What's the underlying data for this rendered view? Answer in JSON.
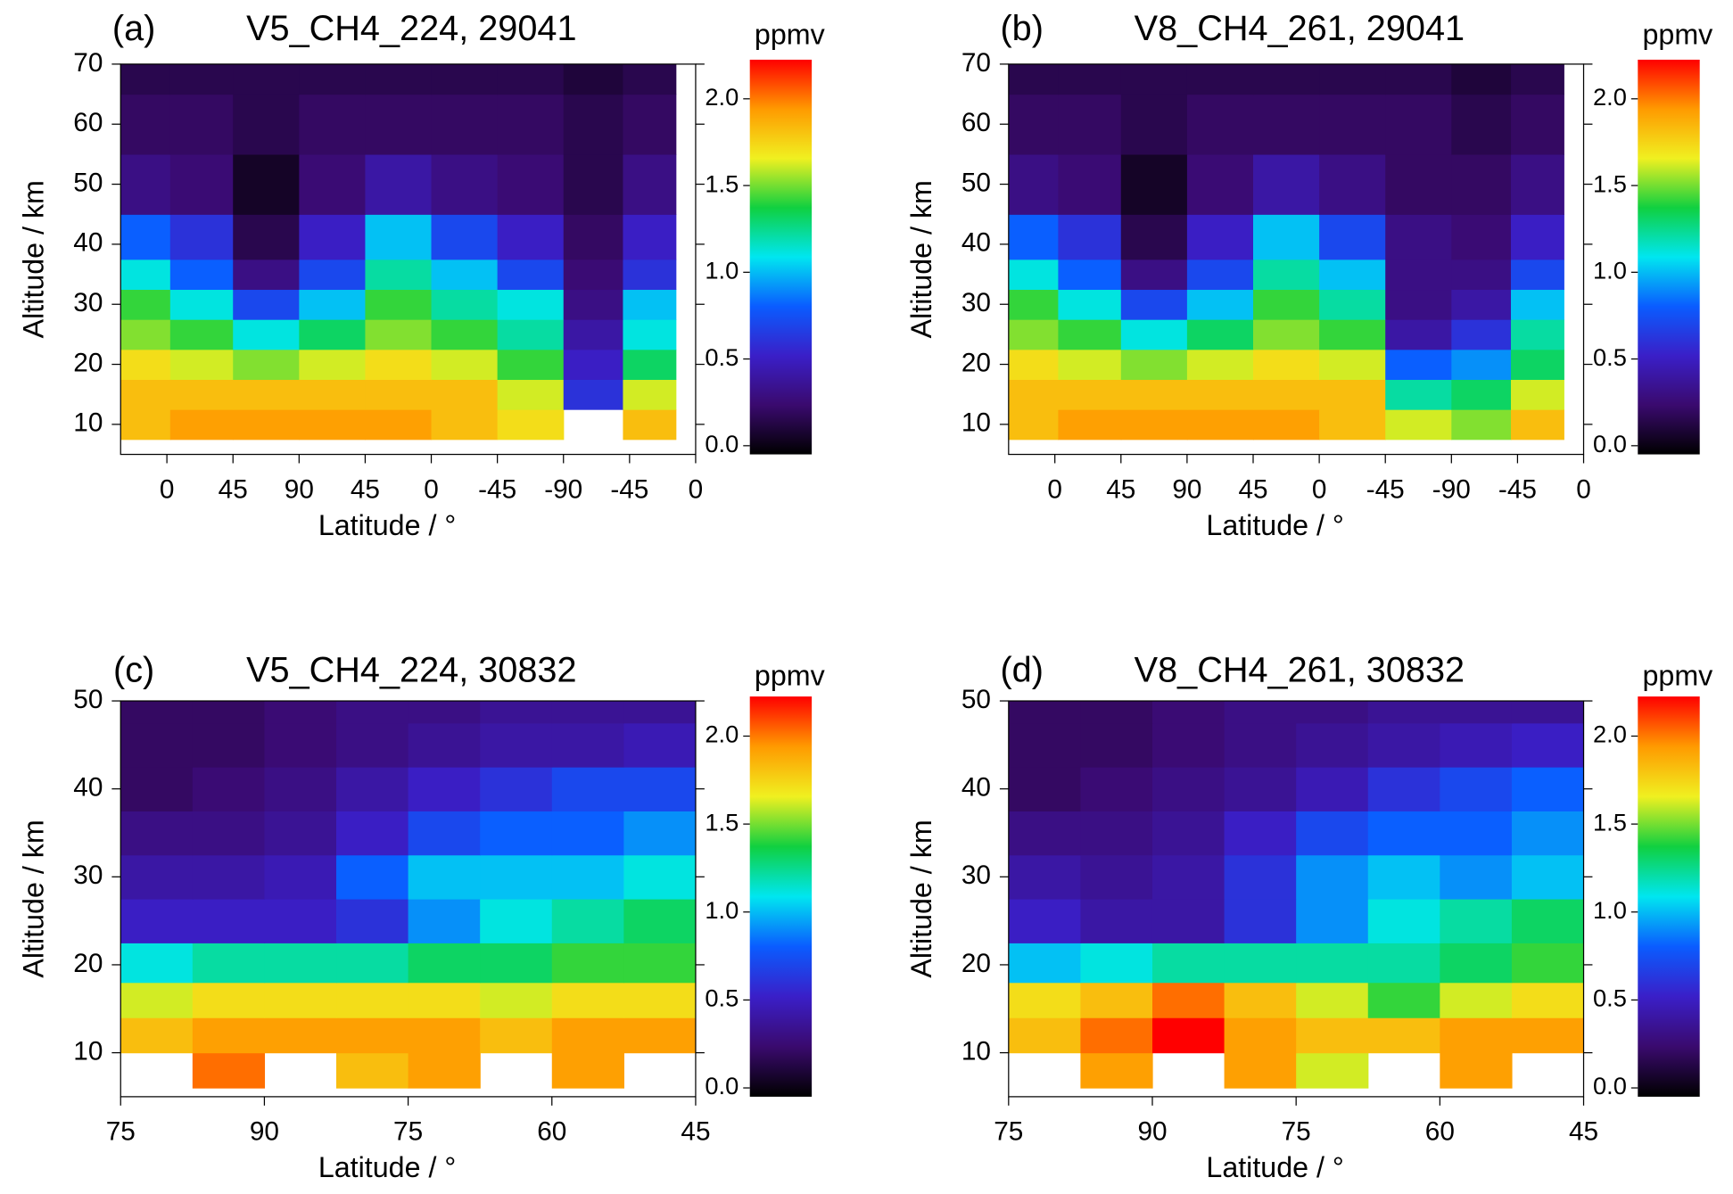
{
  "chart_data": [
    {
      "type": "contour",
      "panel_label": "(a)",
      "title": "V5_CH4_224, 29041",
      "colorbar_label": "ppmv",
      "x_label": "Latitude / °",
      "y_label": "Altitude / km",
      "xlim": [
        -0.7,
        8
      ],
      "xticks": [
        {
          "value": 0,
          "label": "0"
        },
        {
          "value": 1,
          "label": "45"
        },
        {
          "value": 2,
          "label": "90"
        },
        {
          "value": 3,
          "label": "45"
        },
        {
          "value": 4,
          "label": "0"
        },
        {
          "value": 5,
          "label": "-45"
        },
        {
          "value": 6,
          "label": "-90"
        },
        {
          "value": 7,
          "label": "-45"
        },
        {
          "value": 8,
          "label": "0"
        }
      ],
      "ylim": [
        5,
        70
      ],
      "yticks": [
        10,
        20,
        30,
        40,
        50,
        60,
        70
      ],
      "zlim": [
        -0.05,
        2.2
      ],
      "zticks": [
        {
          "value": 0,
          "label": "0.0"
        },
        {
          "value": 0.5,
          "label": "0.5"
        },
        {
          "value": 1,
          "label": "1.0"
        },
        {
          "value": 1.5,
          "label": "1.5"
        },
        {
          "value": 2,
          "label": "2.0"
        }
      ],
      "colors": [
        "#000000",
        "#3a0a6e",
        "#3a1fc8",
        "#0a5cff",
        "#00e6f0",
        "#10d040",
        "#f0f020",
        "#ff9a00",
        "#ff0000"
      ],
      "x": [
        -0.4,
        0.5,
        1.5,
        2.5,
        3.5,
        4.5,
        5.5,
        6.5,
        7.3
      ],
      "y": [
        10,
        15,
        20,
        25,
        30,
        35,
        40,
        50,
        60,
        70
      ],
      "z": [
        [
          1.8,
          1.9,
          1.9,
          1.9,
          1.9,
          1.8,
          1.7,
          null,
          1.8
        ],
        [
          1.8,
          1.8,
          1.8,
          1.8,
          1.8,
          1.8,
          1.6,
          0.6,
          1.6
        ],
        [
          1.7,
          1.6,
          1.5,
          1.6,
          1.7,
          1.6,
          1.4,
          0.5,
          1.3
        ],
        [
          1.5,
          1.4,
          1.1,
          1.3,
          1.5,
          1.4,
          1.2,
          0.4,
          1.1
        ],
        [
          1.4,
          1.1,
          0.7,
          1.0,
          1.4,
          1.2,
          1.1,
          0.3,
          1.0
        ],
        [
          1.1,
          0.8,
          0.3,
          0.7,
          1.2,
          1.0,
          0.7,
          0.25,
          0.6
        ],
        [
          0.8,
          0.6,
          0.15,
          0.5,
          1.0,
          0.7,
          0.5,
          0.2,
          0.5
        ],
        [
          0.3,
          0.25,
          0.05,
          0.25,
          0.4,
          0.3,
          0.25,
          0.15,
          0.3
        ],
        [
          0.2,
          0.2,
          0.15,
          0.2,
          0.2,
          0.2,
          0.2,
          0.15,
          0.2
        ],
        [
          0.15,
          0.15,
          0.15,
          0.15,
          0.15,
          0.15,
          0.15,
          0.1,
          0.15
        ]
      ]
    },
    {
      "type": "contour",
      "panel_label": "(b)",
      "title": "V8_CH4_261, 29041",
      "colorbar_label": "ppmv",
      "x_label": "Latitude / °",
      "y_label": "Altitude / km",
      "xlim": [
        -0.7,
        8
      ],
      "xticks": [
        {
          "value": 0,
          "label": "0"
        },
        {
          "value": 1,
          "label": "45"
        },
        {
          "value": 2,
          "label": "90"
        },
        {
          "value": 3,
          "label": "45"
        },
        {
          "value": 4,
          "label": "0"
        },
        {
          "value": 5,
          "label": "-45"
        },
        {
          "value": 6,
          "label": "-90"
        },
        {
          "value": 7,
          "label": "-45"
        },
        {
          "value": 8,
          "label": "0"
        }
      ],
      "ylim": [
        5,
        70
      ],
      "yticks": [
        10,
        20,
        30,
        40,
        50,
        60,
        70
      ],
      "zlim": [
        -0.05,
        2.2
      ],
      "zticks": [
        {
          "value": 0,
          "label": "0.0"
        },
        {
          "value": 0.5,
          "label": "0.5"
        },
        {
          "value": 1,
          "label": "1.0"
        },
        {
          "value": 1.5,
          "label": "1.5"
        },
        {
          "value": 2,
          "label": "2.0"
        }
      ],
      "colors": [
        "#000000",
        "#3a0a6e",
        "#3a1fc8",
        "#0a5cff",
        "#00e6f0",
        "#10d040",
        "#f0f020",
        "#ff9a00",
        "#ff0000"
      ],
      "x": [
        -0.4,
        0.5,
        1.5,
        2.5,
        3.5,
        4.5,
        5.5,
        6.5,
        7.3
      ],
      "y": [
        10,
        15,
        20,
        25,
        30,
        35,
        40,
        50,
        60,
        70
      ],
      "z": [
        [
          1.8,
          1.9,
          1.9,
          1.9,
          1.9,
          1.8,
          1.6,
          1.5,
          1.8
        ],
        [
          1.8,
          1.8,
          1.8,
          1.8,
          1.8,
          1.8,
          1.2,
          1.3,
          1.6
        ],
        [
          1.7,
          1.6,
          1.5,
          1.6,
          1.7,
          1.6,
          0.8,
          0.9,
          1.3
        ],
        [
          1.5,
          1.4,
          1.1,
          1.3,
          1.5,
          1.4,
          0.4,
          0.6,
          1.2
        ],
        [
          1.4,
          1.1,
          0.7,
          1.0,
          1.4,
          1.2,
          0.3,
          0.4,
          1.0
        ],
        [
          1.1,
          0.8,
          0.3,
          0.7,
          1.2,
          1.0,
          0.3,
          0.3,
          0.7
        ],
        [
          0.8,
          0.6,
          0.15,
          0.5,
          1.0,
          0.7,
          0.3,
          0.25,
          0.5
        ],
        [
          0.3,
          0.25,
          0.05,
          0.25,
          0.4,
          0.3,
          0.2,
          0.2,
          0.3
        ],
        [
          0.2,
          0.2,
          0.15,
          0.2,
          0.2,
          0.2,
          0.2,
          0.15,
          0.2
        ],
        [
          0.15,
          0.15,
          0.15,
          0.15,
          0.15,
          0.15,
          0.15,
          0.1,
          0.15
        ]
      ]
    },
    {
      "type": "contour",
      "panel_label": "(c)",
      "title": "V5_CH4_224, 30832",
      "colorbar_label": "ppmv",
      "x_label": "Latitude / °",
      "y_label": "Altitude / km",
      "xlim": [
        0,
        4
      ],
      "xticks": [
        {
          "value": 0,
          "label": "75"
        },
        {
          "value": 1,
          "label": "90"
        },
        {
          "value": 2,
          "label": "75"
        },
        {
          "value": 3,
          "label": "60"
        },
        {
          "value": 4,
          "label": "45"
        }
      ],
      "ylim": [
        5,
        50
      ],
      "yticks": [
        10,
        20,
        30,
        40,
        50
      ],
      "zlim": [
        -0.05,
        2.2
      ],
      "zticks": [
        {
          "value": 0,
          "label": "0.0"
        },
        {
          "value": 0.5,
          "label": "0.5"
        },
        {
          "value": 1,
          "label": "1.0"
        },
        {
          "value": 1.5,
          "label": "1.5"
        },
        {
          "value": 2,
          "label": "2.0"
        }
      ],
      "colors": [
        "#000000",
        "#3a0a6e",
        "#3a1fc8",
        "#0a5cff",
        "#00e6f0",
        "#10d040",
        "#f0f020",
        "#ff9a00",
        "#ff0000"
      ],
      "x": [
        0.25,
        0.75,
        1.25,
        1.75,
        2.25,
        2.75,
        3.25,
        3.75
      ],
      "y": [
        8,
        12,
        16,
        20,
        25,
        30,
        35,
        40,
        45,
        50
      ],
      "z": [
        [
          null,
          2.0,
          null,
          1.8,
          1.9,
          null,
          1.9,
          null
        ],
        [
          1.8,
          1.9,
          1.9,
          1.9,
          1.9,
          1.8,
          1.9,
          1.9
        ],
        [
          1.6,
          1.7,
          1.7,
          1.7,
          1.7,
          1.6,
          1.7,
          1.7
        ],
        [
          1.1,
          1.2,
          1.2,
          1.2,
          1.3,
          1.3,
          1.4,
          1.4
        ],
        [
          0.5,
          0.5,
          0.5,
          0.6,
          0.9,
          1.1,
          1.2,
          1.3
        ],
        [
          0.4,
          0.4,
          0.45,
          0.8,
          1.0,
          1.0,
          1.0,
          1.1
        ],
        [
          0.3,
          0.3,
          0.35,
          0.5,
          0.7,
          0.8,
          0.8,
          0.9
        ],
        [
          0.2,
          0.25,
          0.3,
          0.4,
          0.5,
          0.6,
          0.7,
          0.7
        ],
        [
          0.2,
          0.2,
          0.25,
          0.3,
          0.35,
          0.4,
          0.4,
          0.45
        ],
        [
          0.2,
          0.2,
          0.25,
          0.3,
          0.3,
          0.35,
          0.35,
          0.35
        ]
      ]
    },
    {
      "type": "contour",
      "panel_label": "(d)",
      "title": "V8_CH4_261, 30832",
      "colorbar_label": "ppmv",
      "x_label": "Latitude / °",
      "y_label": "Altitude / km",
      "xlim": [
        0,
        4
      ],
      "xticks": [
        {
          "value": 0,
          "label": "75"
        },
        {
          "value": 1,
          "label": "90"
        },
        {
          "value": 2,
          "label": "75"
        },
        {
          "value": 3,
          "label": "60"
        },
        {
          "value": 4,
          "label": "45"
        }
      ],
      "ylim": [
        5,
        50
      ],
      "yticks": [
        10,
        20,
        30,
        40,
        50
      ],
      "zlim": [
        -0.05,
        2.2
      ],
      "zticks": [
        {
          "value": 0,
          "label": "0.0"
        },
        {
          "value": 0.5,
          "label": "0.5"
        },
        {
          "value": 1,
          "label": "1.0"
        },
        {
          "value": 1.5,
          "label": "1.5"
        },
        {
          "value": 2,
          "label": "2.0"
        }
      ],
      "colors": [
        "#000000",
        "#3a0a6e",
        "#3a1fc8",
        "#0a5cff",
        "#00e6f0",
        "#10d040",
        "#f0f020",
        "#ff9a00",
        "#ff0000"
      ],
      "x": [
        0.25,
        0.75,
        1.25,
        1.75,
        2.25,
        2.75,
        3.25,
        3.75
      ],
      "y": [
        8,
        12,
        16,
        20,
        25,
        30,
        35,
        40,
        45,
        50
      ],
      "z": [
        [
          null,
          1.9,
          null,
          1.9,
          1.6,
          null,
          1.9,
          null
        ],
        [
          1.8,
          2.0,
          2.2,
          1.9,
          1.8,
          1.8,
          1.9,
          1.9
        ],
        [
          1.7,
          1.8,
          2.0,
          1.8,
          1.6,
          1.4,
          1.6,
          1.7
        ],
        [
          1.0,
          1.1,
          1.2,
          1.2,
          1.2,
          1.2,
          1.3,
          1.4
        ],
        [
          0.5,
          0.4,
          0.4,
          0.6,
          0.9,
          1.1,
          1.2,
          1.3
        ],
        [
          0.4,
          0.35,
          0.4,
          0.6,
          0.9,
          1.0,
          0.9,
          1.0
        ],
        [
          0.3,
          0.3,
          0.35,
          0.5,
          0.7,
          0.8,
          0.8,
          0.9
        ],
        [
          0.2,
          0.25,
          0.3,
          0.35,
          0.45,
          0.6,
          0.7,
          0.8
        ],
        [
          0.2,
          0.2,
          0.25,
          0.3,
          0.35,
          0.4,
          0.45,
          0.5
        ],
        [
          0.2,
          0.2,
          0.25,
          0.3,
          0.3,
          0.35,
          0.35,
          0.35
        ]
      ]
    }
  ]
}
